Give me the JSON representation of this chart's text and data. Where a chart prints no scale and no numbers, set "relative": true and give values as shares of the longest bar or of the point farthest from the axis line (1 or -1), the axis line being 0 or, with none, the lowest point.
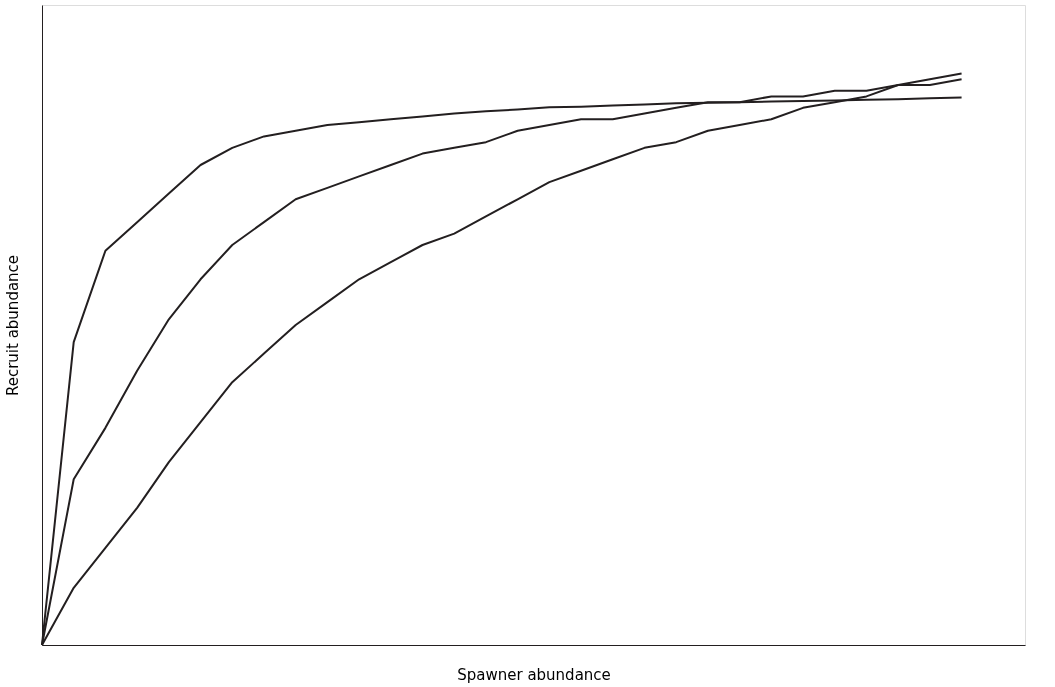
{
  "chart_data": {
    "type": "line",
    "xlabel": "Spawner abundance",
    "ylabel": "Recruit abundance",
    "relative": true,
    "grid": false,
    "legend": false,
    "tick_labels": false,
    "categories": [
      null,
      null,
      null,
      null,
      null,
      null,
      null,
      null,
      null,
      null,
      null,
      null,
      null,
      null,
      null,
      null,
      null,
      null,
      null,
      null,
      null,
      null,
      null,
      null,
      null,
      null,
      null,
      null,
      null,
      null,
      null,
      null
    ],
    "series": [
      {
        "color": "#231f20",
        "values": [
          0,
          0.53,
          0.69,
          0.74,
          0.79,
          0.84,
          0.87,
          0.89,
          0.9,
          0.91,
          0.915,
          0.92,
          0.925,
          0.93,
          0.934,
          0.937,
          0.941,
          0.942,
          0.944,
          0.946,
          0.948,
          0.949,
          0.95,
          0.951,
          0.952,
          0.953,
          0.954,
          0.955,
          0.957,
          0.958,
          null,
          null
        ]
      },
      {
        "color": "#231f20",
        "values": [
          0,
          0.29,
          0.38,
          0.48,
          0.57,
          0.64,
          0.7,
          0.74,
          0.78,
          0.8,
          0.82,
          0.84,
          0.86,
          0.87,
          0.88,
          0.9,
          0.91,
          0.92,
          0.92,
          0.93,
          0.94,
          0.95,
          0.95,
          0.96,
          0.96,
          0.97,
          0.97,
          0.98,
          0.98,
          0.99,
          null,
          null
        ]
      },
      {
        "color": "#231f20",
        "values": [
          0,
          0.1,
          0.17,
          0.24,
          0.32,
          0.39,
          0.46,
          0.51,
          0.56,
          0.6,
          0.64,
          0.67,
          0.7,
          0.72,
          0.75,
          0.78,
          0.81,
          0.83,
          0.85,
          0.87,
          0.88,
          0.9,
          0.91,
          0.92,
          0.94,
          0.95,
          0.96,
          0.98,
          0.99,
          1.0,
          null,
          null
        ]
      }
    ]
  }
}
